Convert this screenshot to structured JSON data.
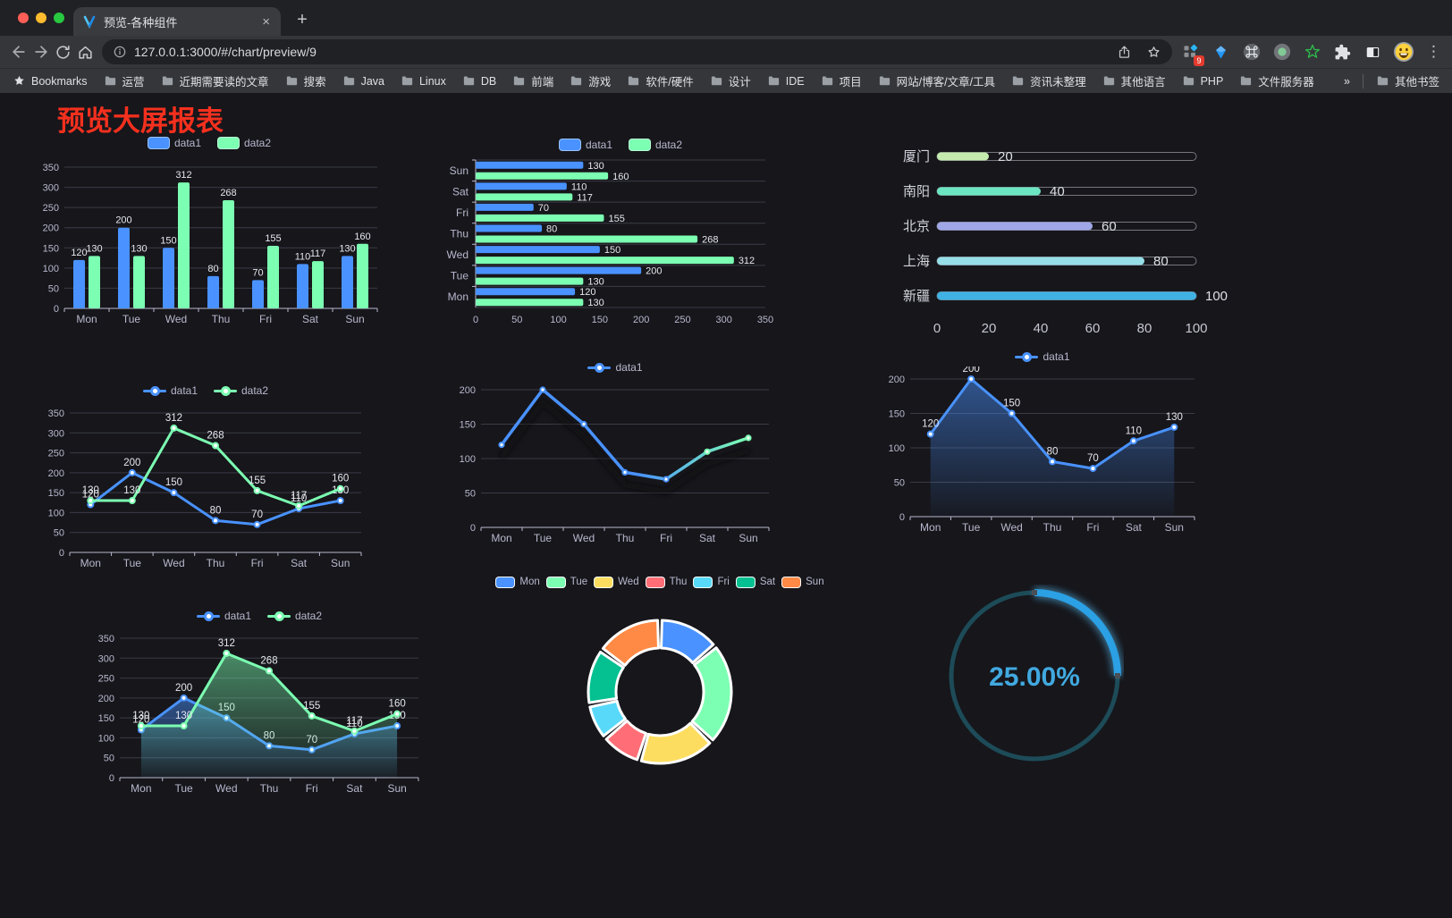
{
  "browser": {
    "traffic_lights": {
      "close": "#ff5f57",
      "minimize": "#febc2e",
      "zoom": "#28c840"
    },
    "tab_title": "预览-各种组件",
    "close_tab_icon": "×",
    "new_tab_icon": "+",
    "url": "127.0.0.1:3000/#/chart/preview/9",
    "extension_badge": "9",
    "menu_icon": "⋮",
    "bookmarks_bar": {
      "star_label": "Bookmarks",
      "folders": [
        "运营",
        "近期需要读的文章",
        "搜索",
        "Java",
        "Linux",
        "DB",
        "前端",
        "游戏",
        "软件/硬件",
        "设计",
        "IDE",
        "项目",
        "网站/博客/文章/工具",
        "资讯未整理",
        "其他语言",
        "PHP",
        "文件服务器"
      ],
      "overflow": "»",
      "other_bookmarks": "其他书签"
    }
  },
  "page": {
    "title": "预览大屏报表",
    "title_color": "#f4301e",
    "background": "#16161b"
  },
  "chart_data": [
    {
      "id": "bar-vertical",
      "type": "bar",
      "categories": [
        "Mon",
        "Tue",
        "Wed",
        "Thu",
        "Fri",
        "Sat",
        "Sun"
      ],
      "series": [
        {
          "name": "data1",
          "color": "#4992ff",
          "values": [
            120,
            200,
            150,
            80,
            70,
            110,
            130
          ]
        },
        {
          "name": "data2",
          "color": "#7cffb2",
          "values": [
            130,
            130,
            312,
            268,
            155,
            117,
            160
          ]
        }
      ],
      "ylim": [
        0,
        350
      ],
      "ytick_step": 50,
      "show_labels": true,
      "legend_position": "top",
      "grid": true
    },
    {
      "id": "bar-horizontal",
      "type": "bar-horizontal",
      "categories": [
        "Mon",
        "Tue",
        "Wed",
        "Thu",
        "Fri",
        "Sat",
        "Sun"
      ],
      "series": [
        {
          "name": "data1",
          "color": "#4992ff",
          "values": [
            120,
            200,
            150,
            80,
            70,
            110,
            130
          ]
        },
        {
          "name": "data2",
          "color": "#7cffb2",
          "values": [
            130,
            130,
            312,
            268,
            155,
            117,
            160
          ]
        }
      ],
      "xlim": [
        0,
        350
      ],
      "xtick_step": 50,
      "show_labels": true,
      "legend_position": "top",
      "grid": true
    },
    {
      "id": "city-progress",
      "type": "progress-bars",
      "xlim": [
        0,
        100
      ],
      "xticks": [
        0,
        20,
        40,
        60,
        80,
        100
      ],
      "items": [
        {
          "label": "厦门",
          "value": 20,
          "color": "#c4ebad"
        },
        {
          "label": "南阳",
          "value": 40,
          "color": "#6be6c1"
        },
        {
          "label": "北京",
          "value": 60,
          "color": "#a0a7e6"
        },
        {
          "label": "上海",
          "value": 80,
          "color": "#96dee8"
        },
        {
          "label": "新疆",
          "value": 100,
          "color": "#3fb1e3"
        }
      ]
    },
    {
      "id": "line-two",
      "type": "line",
      "categories": [
        "Mon",
        "Tue",
        "Wed",
        "Thu",
        "Fri",
        "Sat",
        "Sun"
      ],
      "series": [
        {
          "name": "data1",
          "color": "#4992ff",
          "values": [
            120,
            200,
            150,
            80,
            70,
            110,
            130
          ]
        },
        {
          "name": "data2",
          "color": "#7cffb2",
          "values": [
            130,
            130,
            312,
            268,
            155,
            117,
            160
          ]
        }
      ],
      "ylim": [
        0,
        350
      ],
      "ytick_step": 50,
      "show_labels": true,
      "legend_position": "top",
      "grid": true
    },
    {
      "id": "line-gradient",
      "type": "line-gradient",
      "categories": [
        "Mon",
        "Tue",
        "Wed",
        "Thu",
        "Fri",
        "Sat",
        "Sun"
      ],
      "series": [
        {
          "name": "data1",
          "gradient": [
            "#4992ff",
            "#7cffb2"
          ],
          "values": [
            120,
            200,
            150,
            80,
            70,
            110,
            130
          ]
        }
      ],
      "ylim": [
        0,
        200
      ],
      "ytick_step": 50,
      "show_labels": false,
      "legend_position": "top",
      "grid": true
    },
    {
      "id": "area-blue",
      "type": "line",
      "categories": [
        "Mon",
        "Tue",
        "Wed",
        "Thu",
        "Fri",
        "Sat",
        "Sun"
      ],
      "series": [
        {
          "name": "data1",
          "color": "#4992ff",
          "values": [
            120,
            200,
            150,
            80,
            70,
            110,
            130
          ],
          "area": true
        }
      ],
      "ylim": [
        0,
        200
      ],
      "ytick_step": 50,
      "show_labels": true,
      "legend_position": "top",
      "grid": true
    },
    {
      "id": "area-two",
      "type": "line",
      "categories": [
        "Mon",
        "Tue",
        "Wed",
        "Thu",
        "Fri",
        "Sat",
        "Sun"
      ],
      "series": [
        {
          "name": "data1",
          "color": "#4992ff",
          "values": [
            120,
            200,
            150,
            80,
            70,
            110,
            130
          ],
          "area": true
        },
        {
          "name": "data2",
          "color": "#7cffb2",
          "values": [
            130,
            130,
            312,
            268,
            155,
            117,
            160
          ],
          "area": true
        }
      ],
      "ylim": [
        0,
        350
      ],
      "ytick_step": 50,
      "show_labels": true,
      "legend_position": "top",
      "grid": true
    },
    {
      "id": "pie-week",
      "type": "pie",
      "items": [
        {
          "label": "Mon",
          "value": 120,
          "color": "#4992ff"
        },
        {
          "label": "Tue",
          "value": 200,
          "color": "#7cffb2"
        },
        {
          "label": "Wed",
          "value": 150,
          "color": "#fddd60"
        },
        {
          "label": "Thu",
          "value": 80,
          "color": "#ff6e76"
        },
        {
          "label": "Fri",
          "value": 70,
          "color": "#58d9f9"
        },
        {
          "label": "Sat",
          "value": 110,
          "color": "#05c091"
        },
        {
          "label": "Sun",
          "value": 130,
          "color": "#ff8a45"
        }
      ],
      "legend_position": "top"
    },
    {
      "id": "gauge-ring",
      "type": "gauge",
      "value_percent": 25,
      "label": "25.00%",
      "color": "#2ba0e4",
      "glow_color": "#58c6ff",
      "text_color": "#41a9e0",
      "track_color": "#1d4b58"
    }
  ]
}
